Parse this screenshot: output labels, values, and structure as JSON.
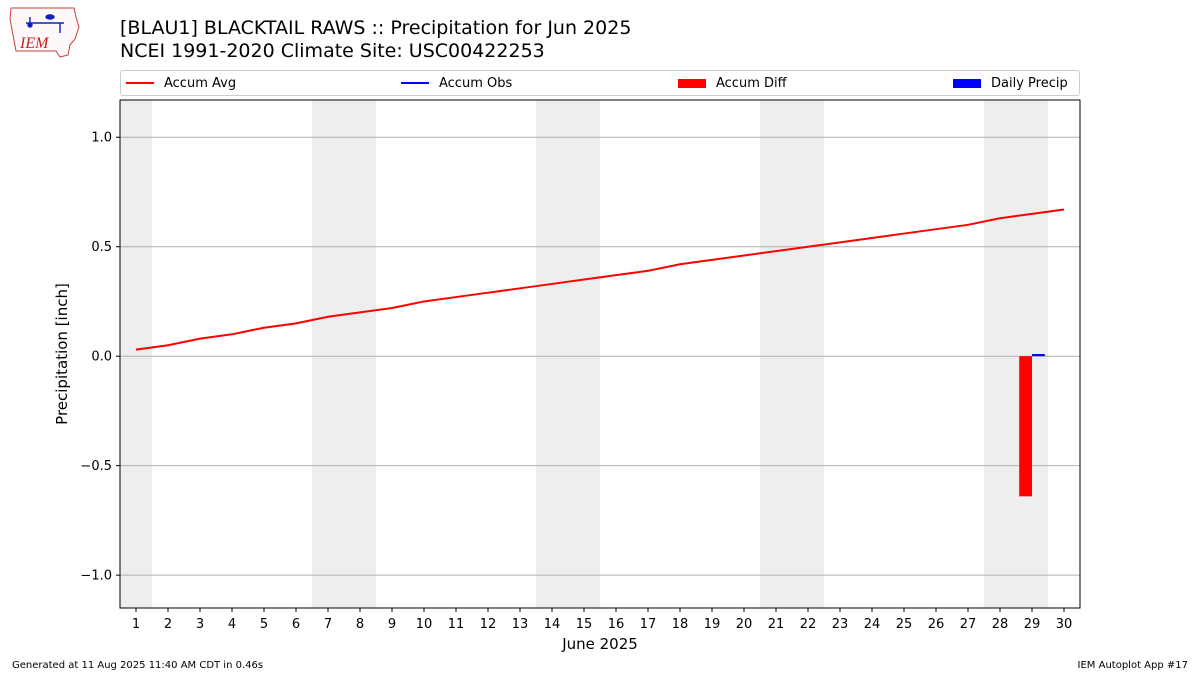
{
  "header": {
    "title_line1": "[BLAU1] BLACKTAIL RAWS :: Precipitation for Jun 2025",
    "title_line2": "NCEI 1991-2020 Climate Site: USC00422253"
  },
  "logo": {
    "text": "IEM",
    "icon": "iem-iowa-logo"
  },
  "legend": {
    "items": [
      {
        "label": "Accum Avg",
        "type": "line",
        "color": "#ff0000"
      },
      {
        "label": "Accum Obs",
        "type": "line",
        "color": "#0000ff"
      },
      {
        "label": "Accum Diff",
        "type": "box",
        "color": "#ff0000"
      },
      {
        "label": "Daily Precip",
        "type": "box",
        "color": "#0000ff"
      }
    ],
    "placement": "top"
  },
  "footer": {
    "left": "Generated at 11 Aug 2025 11:40 AM CDT in 0.46s",
    "right": "IEM Autoplot App #17"
  },
  "chart_data": {
    "type": "line",
    "xlabel": "June 2025",
    "ylabel": "Precipitation [inch]",
    "x": [
      1,
      2,
      3,
      4,
      5,
      6,
      7,
      8,
      9,
      10,
      11,
      12,
      13,
      14,
      15,
      16,
      17,
      18,
      19,
      20,
      21,
      22,
      23,
      24,
      25,
      26,
      27,
      28,
      29,
      30
    ],
    "xlim": [
      0.5,
      30.5
    ],
    "ylim": [
      -1.15,
      1.17
    ],
    "yticks": [
      1.0,
      0.5,
      0.0,
      -0.5,
      -1.0
    ],
    "ytick_labels": [
      "1.0",
      "0.5",
      "0.0",
      "−0.5",
      "−1.0"
    ],
    "grid": true,
    "weekend_shading": [
      [
        0.5,
        1.5
      ],
      [
        6.5,
        8.5
      ],
      [
        13.5,
        15.5
      ],
      [
        20.5,
        22.5
      ],
      [
        27.5,
        29.5
      ]
    ],
    "shading_color": "#eeeeee",
    "series": [
      {
        "name": "Accum Avg",
        "type": "line",
        "color": "#ff0000",
        "x": [
          1,
          2,
          3,
          4,
          5,
          6,
          7,
          8,
          9,
          10,
          11,
          12,
          13,
          14,
          15,
          16,
          17,
          18,
          19,
          20,
          21,
          22,
          23,
          24,
          25,
          26,
          27,
          28,
          29,
          30
        ],
        "values": [
          0.03,
          0.05,
          0.08,
          0.1,
          0.13,
          0.15,
          0.18,
          0.2,
          0.22,
          0.25,
          0.27,
          0.29,
          0.31,
          0.33,
          0.35,
          0.37,
          0.39,
          0.42,
          0.44,
          0.46,
          0.48,
          0.5,
          0.52,
          0.54,
          0.56,
          0.58,
          0.6,
          0.63,
          0.65,
          0.67
        ]
      },
      {
        "name": "Accum Obs",
        "type": "line",
        "color": "#0000ff",
        "x": [
          29
        ],
        "values": [
          0.0
        ]
      },
      {
        "name": "Accum Diff",
        "type": "bar",
        "color": "#ff0000",
        "x": [
          29
        ],
        "values": [
          -0.64
        ],
        "offset": -0.2,
        "width": 0.4
      },
      {
        "name": "Daily Precip",
        "type": "bar",
        "color": "#0000ff",
        "x": [
          29
        ],
        "values": [
          0.01
        ],
        "offset": 0.2,
        "width": 0.4
      }
    ]
  }
}
